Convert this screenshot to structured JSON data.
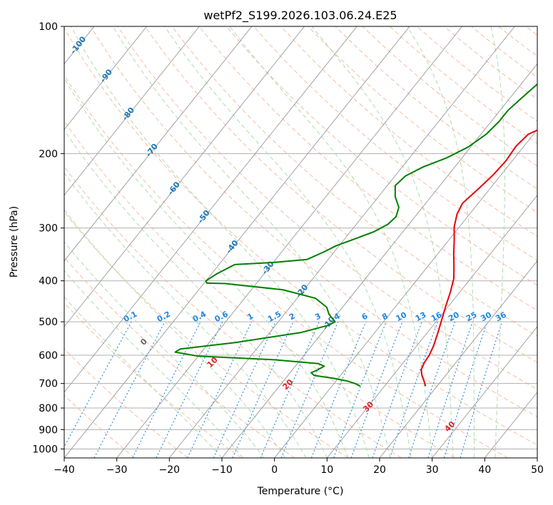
{
  "chart_data": {
    "type": "line",
    "title": "wetPf2_S199.2026.103.06.24.E25",
    "xlabel": "Temperature (°C)",
    "ylabel": "Pressure (hPa)",
    "xlim": [
      -40,
      50
    ],
    "ylim": [
      1050,
      100
    ],
    "y_scale": "log",
    "x_ticks": [
      -40,
      -30,
      -20,
      -10,
      0,
      10,
      20,
      30,
      40,
      50
    ],
    "y_ticks": [
      1000,
      900,
      800,
      700,
      600,
      500,
      400,
      300,
      200,
      100
    ],
    "grid": true,
    "colors": {
      "temperature": "#e8000b",
      "dewpoint": "#008000",
      "isotherm": "#999999",
      "dry_adiabat": "#f4a582",
      "moist_adiabat": "#a6d8a6",
      "mixing_ratio": "#1e88e5",
      "isotherm_label": "#1f77b4",
      "dry_adiabat_label": "#d62728",
      "zero_label": "#666666"
    },
    "series": [
      {
        "name": "",
        "role": "temperature",
        "points": [
          [
            17.8,
            710
          ],
          [
            17.0,
            695
          ],
          [
            15.5,
            670
          ],
          [
            14.5,
            650
          ],
          [
            14.0,
            625
          ],
          [
            13.8,
            600
          ],
          [
            13.2,
            570
          ],
          [
            12.0,
            530
          ],
          [
            10.8,
            495
          ],
          [
            9.5,
            460
          ],
          [
            8.2,
            425
          ],
          [
            6.8,
            395
          ],
          [
            5.0,
            370
          ],
          [
            3.0,
            345
          ],
          [
            1.0,
            320
          ],
          [
            -1.0,
            298
          ],
          [
            -2.4,
            278
          ],
          [
            -3.0,
            262
          ],
          [
            -2.2,
            243
          ],
          [
            -1.5,
            225
          ],
          [
            -1.2,
            208
          ],
          [
            -1.5,
            192
          ],
          [
            -1.0,
            180
          ],
          [
            1.5,
            171
          ],
          [
            4.5,
            164
          ],
          [
            7.5,
            156
          ],
          [
            10.0,
            148
          ],
          [
            12.5,
            140
          ],
          [
            14.3,
            132
          ],
          [
            15.5,
            124
          ],
          [
            16.8,
            116
          ],
          [
            18.5,
            110
          ],
          [
            20.5,
            105
          ],
          [
            22.5,
            101
          ],
          [
            23.3,
            100
          ]
        ]
      },
      {
        "name": "",
        "role": "dewpoint",
        "points": [
          [
            5.4,
            710
          ],
          [
            4.0,
            700
          ],
          [
            2.0,
            690
          ],
          [
            -1.0,
            680
          ],
          [
            -5.0,
            670
          ],
          [
            -6.0,
            660
          ],
          [
            -5.2,
            650
          ],
          [
            -4.5,
            637
          ],
          [
            -6.0,
            628
          ],
          [
            -15.0,
            615
          ],
          [
            -30.0,
            603
          ],
          [
            -35.0,
            590
          ],
          [
            -34.5,
            580
          ],
          [
            -25.0,
            560
          ],
          [
            -14.0,
            530
          ],
          [
            -10.0,
            510
          ],
          [
            -9.2,
            500
          ],
          [
            -11.5,
            480
          ],
          [
            -13.0,
            462
          ],
          [
            -16.5,
            440
          ],
          [
            -24.0,
            420
          ],
          [
            -36.0,
            406
          ],
          [
            -39.5,
            405
          ],
          [
            -40.0,
            400
          ],
          [
            -39.0,
            385
          ],
          [
            -37.0,
            366
          ],
          [
            -30.0,
            362
          ],
          [
            -24.0,
            356
          ],
          [
            -22.0,
            342
          ],
          [
            -20.5,
            330
          ],
          [
            -18.0,
            318
          ],
          [
            -15.5,
            306
          ],
          [
            -14.0,
            294
          ],
          [
            -13.6,
            282
          ],
          [
            -14.5,
            268
          ],
          [
            -16.8,
            253
          ],
          [
            -18.5,
            238
          ],
          [
            -18.0,
            226
          ],
          [
            -16.0,
            215
          ],
          [
            -13.0,
            205
          ],
          [
            -10.5,
            193
          ],
          [
            -9.0,
            180
          ],
          [
            -8.5,
            168
          ],
          [
            -8.5,
            158
          ],
          [
            -7.8,
            148
          ],
          [
            -7.0,
            138
          ],
          [
            -5.7,
            128
          ],
          [
            -4.8,
            121
          ],
          [
            -4.3,
            114
          ],
          [
            -3.3,
            108
          ],
          [
            -2.5,
            103
          ],
          [
            -2.0,
            100
          ]
        ]
      }
    ],
    "isotherm_labels": [
      "-100",
      "-90",
      "-80",
      "-70",
      "-60",
      "-50",
      "-40",
      "-30",
      "-20",
      "-10"
    ],
    "dry_adiabat_labels": [
      "0",
      "10",
      "20",
      "30",
      "40"
    ],
    "mixing_ratio_labels": [
      "0.1",
      "0.2",
      "0.4",
      "0.6",
      "1",
      "1.5",
      "2",
      "3",
      "4",
      "6",
      "8",
      "10",
      "13",
      "16",
      "20",
      "25",
      "30",
      "36"
    ]
  }
}
